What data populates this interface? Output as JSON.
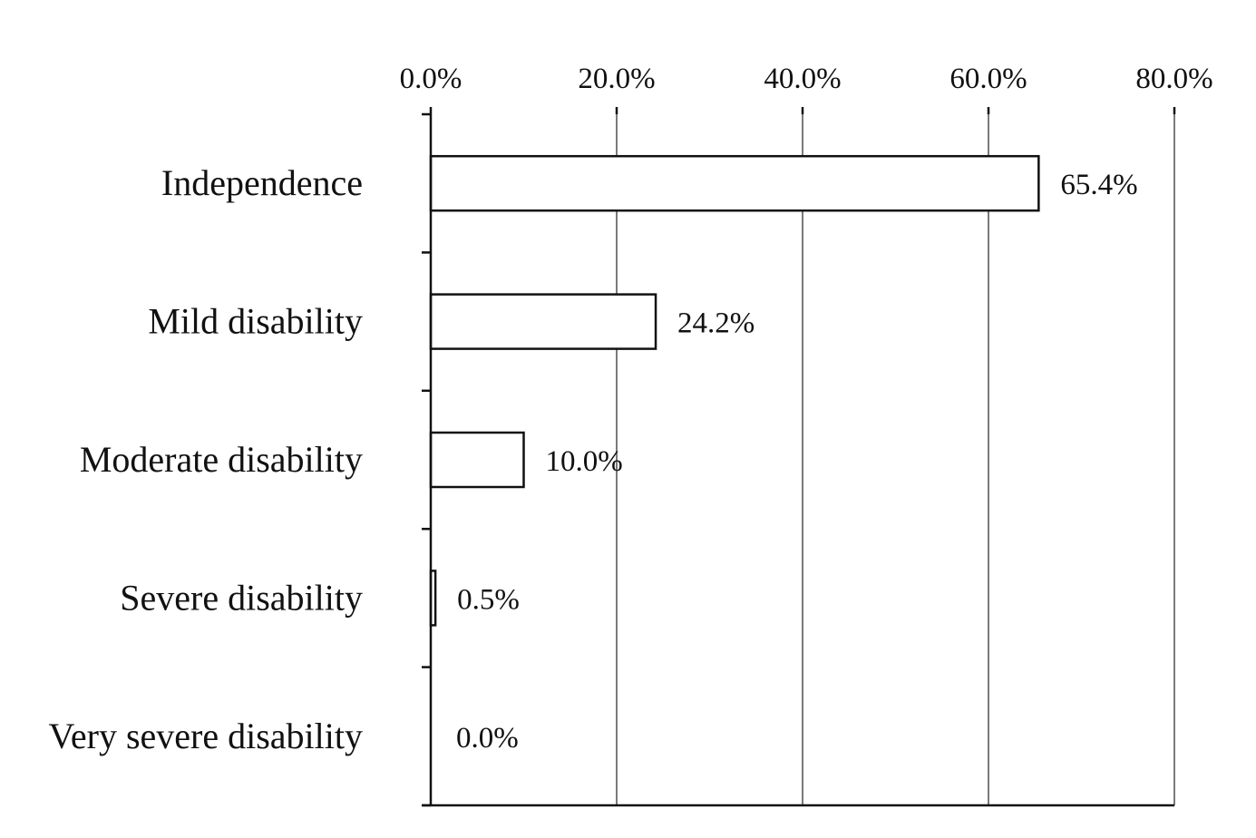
{
  "chart_data": {
    "type": "bar",
    "orientation": "horizontal",
    "categories": [
      "Independence",
      "Mild disability",
      "Moderate disability",
      "Severe disability",
      "Very severe disability"
    ],
    "values": [
      65.4,
      24.2,
      10.0,
      0.5,
      0.0
    ],
    "value_labels": [
      "65.4%",
      "24.2%",
      "10.0%",
      "0.5%",
      "0.0%"
    ],
    "xlim": [
      0,
      80
    ],
    "xticks": [
      0,
      20,
      40,
      60,
      80
    ],
    "xtick_labels": [
      "0.0%",
      "20.0%",
      "40.0%",
      "60.0%",
      "80.0%"
    ],
    "xaxis_position": "top",
    "grid": true,
    "bar_fill": "#ffffff",
    "bar_edge": "#111111",
    "grid_color": "#7a7a7a",
    "title": "",
    "xlabel": "",
    "ylabel": ""
  }
}
